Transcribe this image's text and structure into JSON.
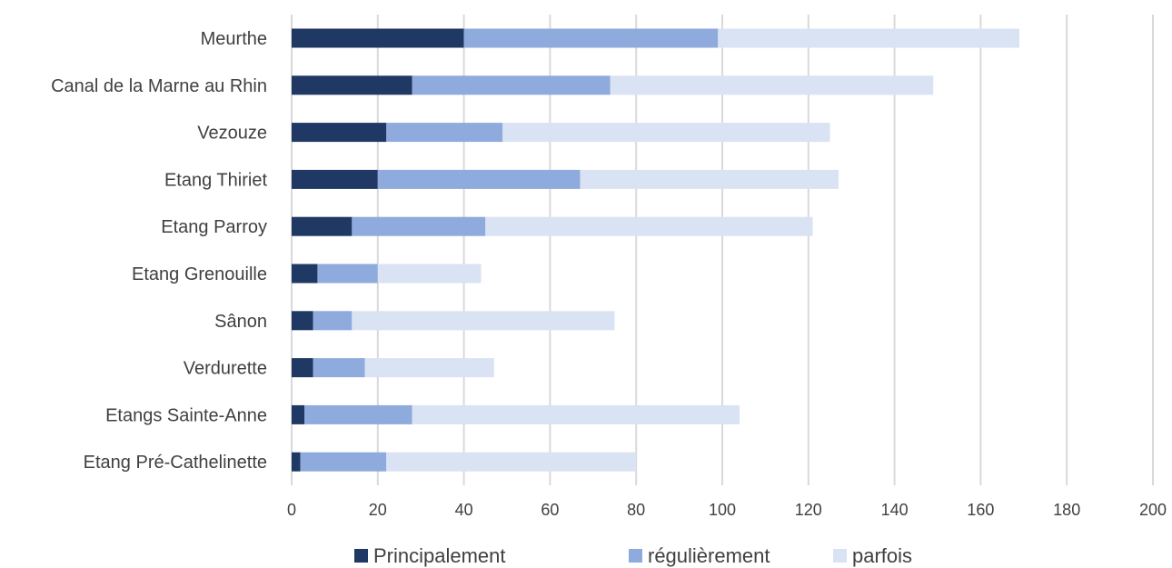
{
  "chart_data": {
    "type": "bar",
    "orientation": "horizontal",
    "stacked": true,
    "title": "",
    "xlabel": "",
    "ylabel": "",
    "xlim": [
      0,
      200
    ],
    "x_ticks": [
      0,
      20,
      40,
      60,
      80,
      100,
      120,
      140,
      160,
      180,
      200
    ],
    "grid": true,
    "legend_position": "bottom",
    "categories": [
      "Meurthe",
      "Canal de la Marne au Rhin",
      "Vezouze",
      "Etang Thiriet",
      "Etang Parroy",
      "Etang Grenouille",
      "Sânon",
      "Verdurette",
      "Etangs Sainte-Anne",
      "Etang Pré-Cathelinette"
    ],
    "series": [
      {
        "name": "Principalement",
        "color": "#1f3864",
        "values": [
          40,
          28,
          22,
          20,
          14,
          6,
          5,
          5,
          3,
          2
        ]
      },
      {
        "name": "régulièrement",
        "color": "#8faadc",
        "values": [
          59,
          46,
          27,
          47,
          31,
          14,
          9,
          12,
          25,
          20
        ]
      },
      {
        "name": "parfois",
        "color": "#dae3f3",
        "values": [
          70,
          75,
          76,
          60,
          76,
          24,
          61,
          30,
          76,
          58
        ]
      }
    ]
  }
}
